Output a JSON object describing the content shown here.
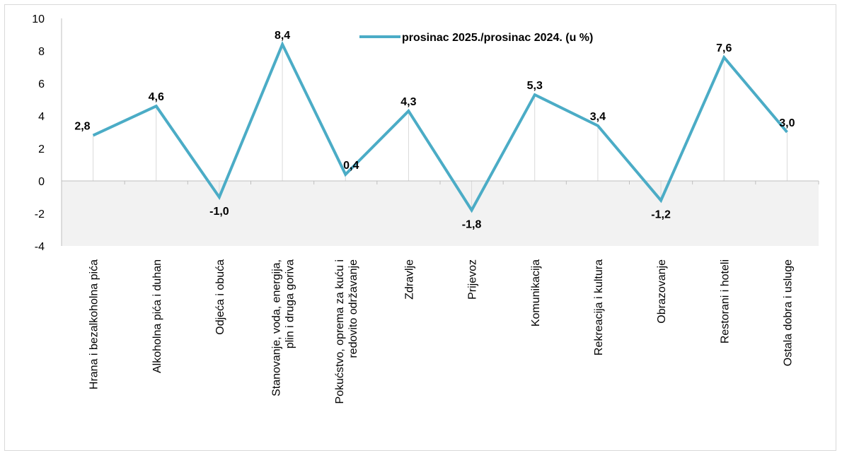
{
  "chart_data": {
    "type": "line",
    "categories": [
      [
        "Hrana i bezalkoholna pića"
      ],
      [
        "Alkoholna pića i duhan"
      ],
      [
        "Odjeća i obuća"
      ],
      [
        "Stanovanje, voda, energija,",
        "plin i druga goriva"
      ],
      [
        "Pokućstvo, oprema za kuću i",
        "redovito održavanje"
      ],
      [
        "Zdravlje"
      ],
      [
        "Prijevoz"
      ],
      [
        "Komunikacija"
      ],
      [
        "Rekreacija i kultura"
      ],
      [
        "Obrazovanje"
      ],
      [
        "Restorani i hoteli"
      ],
      [
        "Ostala dobra i usluge"
      ]
    ],
    "series": [
      {
        "name": "prosinac 2025./prosinac 2024. (u %)",
        "values": [
          2.8,
          4.6,
          -1.0,
          8.4,
          0.4,
          4.3,
          -1.8,
          5.3,
          3.4,
          -1.2,
          7.6,
          3.0
        ],
        "labels": [
          "2,8",
          "4,6",
          "-1,0",
          "8,4",
          "0,4",
          "4,3",
          "-1,8",
          "5,3",
          "3,4",
          "-1,2",
          "7,6",
          "3,0"
        ],
        "color": "#4bacc6"
      }
    ],
    "ylim": [
      -4,
      10
    ],
    "yticks": [
      "-4",
      "-2",
      "0",
      "2",
      "4",
      "6",
      "8",
      "10"
    ],
    "negative_band_color": "#f2f2f2",
    "drop_lines": true,
    "legend_position": "top-right",
    "title": "",
    "xlabel": "",
    "ylabel": ""
  }
}
